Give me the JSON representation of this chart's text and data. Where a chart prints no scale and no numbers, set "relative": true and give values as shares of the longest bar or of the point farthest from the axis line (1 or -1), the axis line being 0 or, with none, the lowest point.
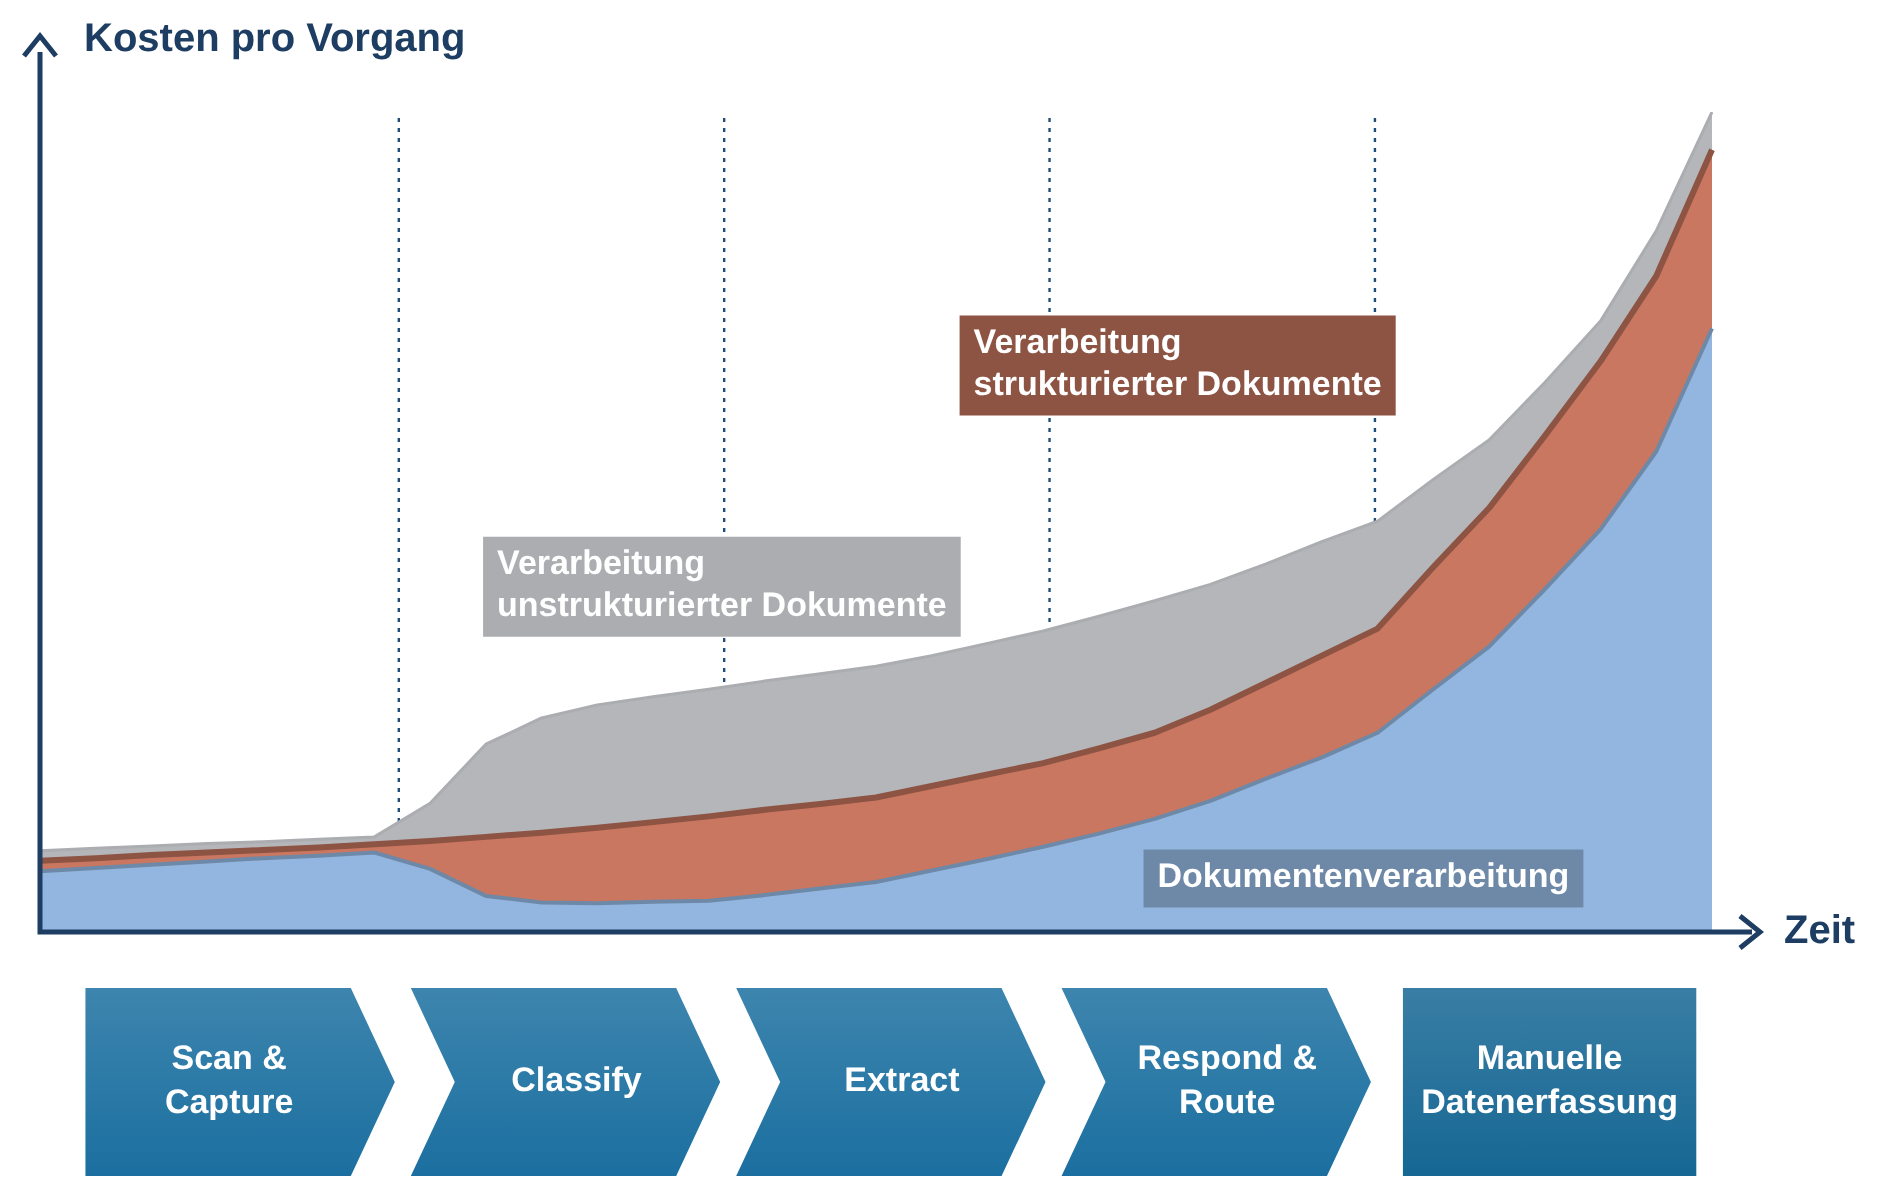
{
  "chart_data": {
    "type": "area",
    "relative": true,
    "ylabel": "Kosten pro Vorgang",
    "xlabel": "Zeit",
    "tick_labels": false,
    "marker": "none",
    "categories": [
      null,
      null,
      null,
      null,
      null,
      null,
      null,
      null,
      null,
      null,
      null,
      null,
      null,
      null,
      null,
      null,
      null,
      null,
      null,
      null,
      null,
      null,
      null,
      null,
      null,
      null,
      null,
      null,
      null,
      null,
      null
    ],
    "series": [
      {
        "name": "Verarbeitung unstrukturierter Dokumente",
        "color": "#b4b6ba",
        "values": [
          0.099,
          0.102,
          0.105,
          0.108,
          0.11,
          0.113,
          0.116,
          0.157,
          0.229,
          0.261,
          0.277,
          0.287,
          0.296,
          0.306,
          0.315,
          0.324,
          0.337,
          0.352,
          0.367,
          0.385,
          0.404,
          0.424,
          0.449,
          0.476,
          0.501,
          0.552,
          0.6,
          0.67,
          0.745,
          0.855,
          1
        ]
      },
      {
        "name": "Verarbeitung strukturierter Dokumente",
        "color": "#c97760",
        "values": [
          0.087,
          0.09,
          0.094,
          0.097,
          0.1,
          0.103,
          0.107,
          0.111,
          0.116,
          0.121,
          0.127,
          0.134,
          0.141,
          0.149,
          0.156,
          0.164,
          0.178,
          0.192,
          0.206,
          0.224,
          0.243,
          0.271,
          0.304,
          0.337,
          0.37,
          0.445,
          0.517,
          0.605,
          0.696,
          0.8,
          0.954
        ]
      },
      {
        "name": "Dokumentenverarbeitung",
        "color": "#92b6e0",
        "values": [
          0.074,
          0.078,
          0.082,
          0.086,
          0.09,
          0.093,
          0.097,
          0.077,
          0.044,
          0.036,
          0.035,
          0.037,
          0.038,
          0.045,
          0.053,
          0.061,
          0.075,
          0.089,
          0.104,
          0.12,
          0.138,
          0.16,
          0.187,
          0.213,
          0.243,
          0.296,
          0.348,
          0.418,
          0.491,
          0.586,
          0.736
        ]
      }
    ],
    "annotations": [
      "Scan & Capture",
      "Classify",
      "Extract",
      "Respond & Route",
      "Manuelle Datenerfassung"
    ]
  }
}
